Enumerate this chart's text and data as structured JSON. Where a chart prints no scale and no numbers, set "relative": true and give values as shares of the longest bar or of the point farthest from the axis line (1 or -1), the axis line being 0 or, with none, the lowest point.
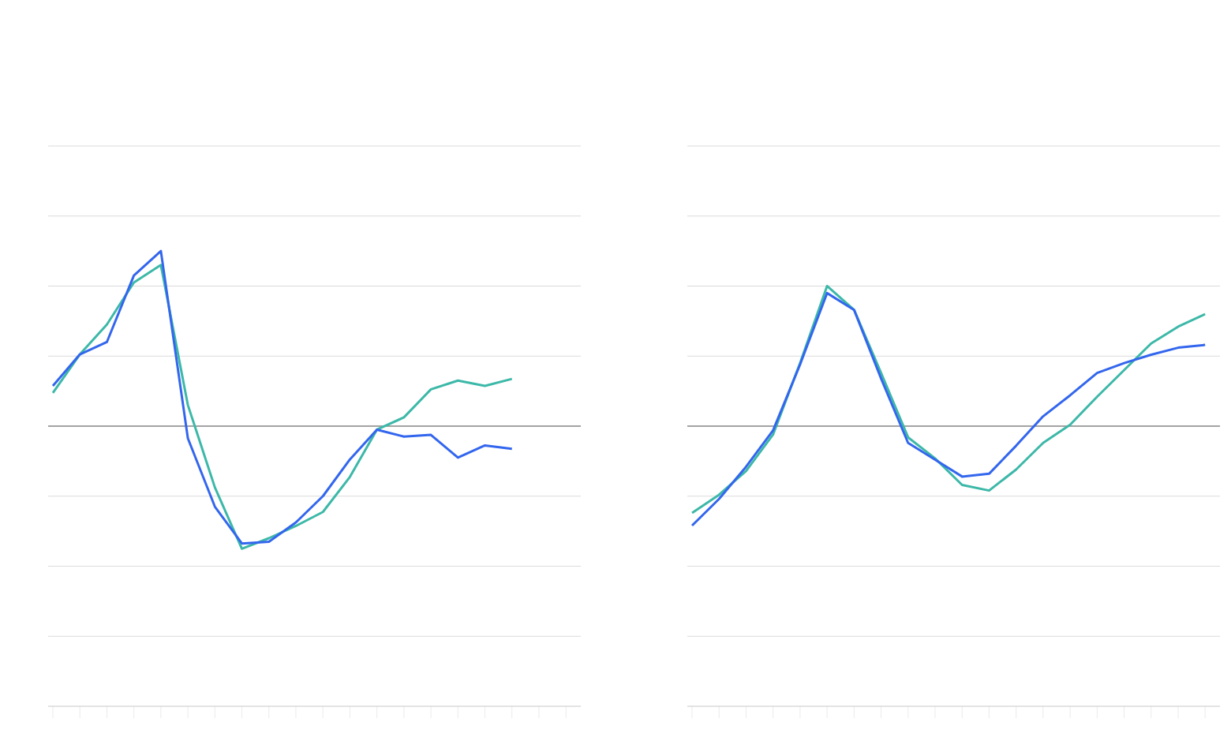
{
  "chart_data": [
    {
      "type": "line",
      "relative": true,
      "grid": "y",
      "categories": [
        null,
        null,
        null,
        null,
        null,
        null,
        null,
        null,
        null,
        null,
        null,
        null,
        null,
        null,
        null,
        null,
        null,
        null,
        null,
        null
      ],
      "series": [
        {
          "color": "#3cb8a8",
          "values": [
            0.19,
            0.41,
            0.58,
            0.82,
            0.92,
            0.12,
            -0.35,
            -0.7,
            -0.64,
            -0.57,
            -0.49,
            -0.29,
            -0.02,
            0.05,
            0.21,
            0.26,
            0.23,
            0.27,
            null,
            null
          ]
        },
        {
          "color": "#3366ee",
          "values": [
            0.23,
            0.41,
            0.48,
            0.86,
            1,
            -0.07,
            -0.46,
            -0.67,
            -0.66,
            -0.55,
            -0.4,
            -0.19,
            -0.02,
            -0.06,
            -0.05,
            -0.18,
            -0.11,
            -0.13,
            null,
            null
          ]
        }
      ]
    },
    {
      "type": "line",
      "relative": true,
      "grid": "y",
      "categories": [
        null,
        null,
        null,
        null,
        null,
        null,
        null,
        null,
        null,
        null,
        null,
        null,
        null,
        null,
        null,
        null,
        null,
        null,
        null,
        null
      ],
      "series": [
        {
          "color": "#3cb8a8",
          "values": [
            -0.62,
            -0.49,
            -0.32,
            -0.06,
            0.45,
            1,
            0.83,
            0.38,
            -0.08,
            -0.23,
            -0.42,
            -0.46,
            -0.31,
            -0.12,
            0.01,
            0.21,
            0.4,
            0.59,
            0.71,
            0.8
          ]
        },
        {
          "color": "#3366ee",
          "values": [
            -0.71,
            -0.52,
            -0.29,
            -0.03,
            0.44,
            0.95,
            0.83,
            0.34,
            -0.12,
            -0.24,
            -0.36,
            -0.34,
            -0.14,
            0.07,
            0.22,
            0.38,
            0.45,
            0.51,
            0.56,
            0.58
          ]
        }
      ]
    }
  ]
}
